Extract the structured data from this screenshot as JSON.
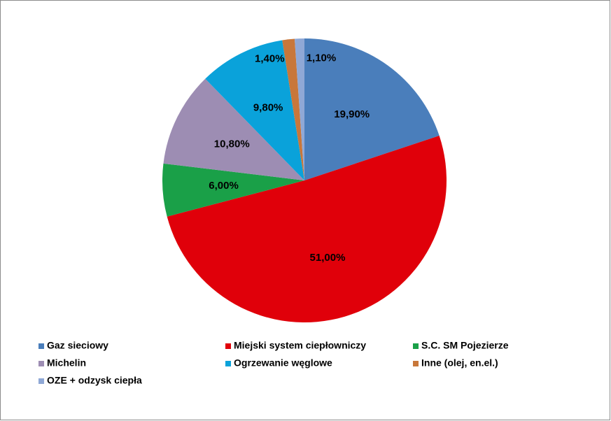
{
  "chart_data": {
    "type": "pie",
    "categories": [
      "Gaz sieciowy",
      "Miejski system ciepłowniczy",
      "S.C. SM Pojezierze",
      "Michelin",
      "Ogrzewanie węglowe",
      "Inne (olej, en.el.)",
      "OZE + odzysk ciepła"
    ],
    "values": [
      19.9,
      51.0,
      6.0,
      10.8,
      9.8,
      1.4,
      1.1
    ],
    "value_labels": [
      "19,90%",
      "51,00%",
      "6,00%",
      "10,80%",
      "9,80%",
      "1,40%",
      "1,10%"
    ],
    "colors": [
      "#4a7ebb",
      "#e0000a",
      "#1aa048",
      "#9d8db3",
      "#0aa2da",
      "#c8773a",
      "#8fa8d6"
    ],
    "legend": "bottom"
  }
}
